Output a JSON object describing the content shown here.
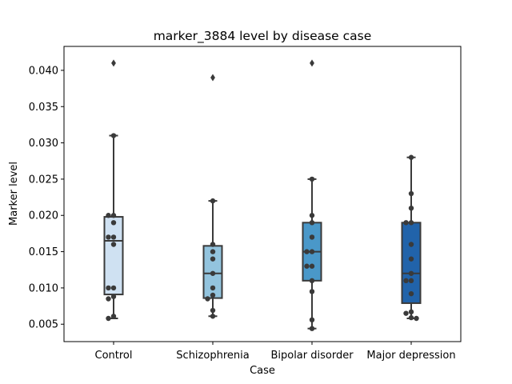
{
  "chart_data": {
    "type": "box",
    "title": "marker_3884 level by disease case",
    "xlabel": "Case",
    "ylabel": "Marker level",
    "ylim": [
      0.0026,
      0.0433
    ],
    "yticks": [
      "0.005",
      "0.010",
      "0.015",
      "0.020",
      "0.025",
      "0.030",
      "0.035",
      "0.040"
    ],
    "grid": false,
    "legend": "none",
    "categories": [
      "Control",
      "Schizophrenia",
      "Bipolar disorder",
      "Major depression"
    ],
    "colors": [
      "#cfe1f2",
      "#93c4de",
      "#4a98c9",
      "#2163aa"
    ],
    "boxes": [
      {
        "whisker_low": 0.0058,
        "q1": 0.0091,
        "median": 0.0165,
        "q3": 0.0198,
        "whisker_high": 0.031
      },
      {
        "whisker_low": 0.0061,
        "q1": 0.0086,
        "median": 0.012,
        "q3": 0.0158,
        "whisker_high": 0.022
      },
      {
        "whisker_low": 0.0044,
        "q1": 0.011,
        "median": 0.015,
        "q3": 0.019,
        "whisker_high": 0.025
      },
      {
        "whisker_low": 0.0058,
        "q1": 0.0079,
        "median": 0.012,
        "q3": 0.019,
        "whisker_high": 0.028
      }
    ],
    "outliers": [
      {
        "category": "Control",
        "value": 0.041
      },
      {
        "category": "Schizophrenia",
        "value": 0.039
      },
      {
        "category": "Bipolar disorder",
        "value": 0.041
      }
    ],
    "points": [
      {
        "category": "Control",
        "values": [
          0.031,
          0.02,
          0.02,
          0.019,
          0.017,
          0.017,
          0.016,
          0.01,
          0.01,
          0.0088,
          0.0085,
          0.0061,
          0.0058
        ]
      },
      {
        "category": "Schizophrenia",
        "values": [
          0.022,
          0.016,
          0.015,
          0.014,
          0.012,
          0.01,
          0.009,
          0.0085,
          0.0069,
          0.0061
        ]
      },
      {
        "category": "Bipolar disorder",
        "values": [
          0.025,
          0.02,
          0.019,
          0.017,
          0.015,
          0.015,
          0.013,
          0.013,
          0.011,
          0.0095,
          0.0056,
          0.0044
        ]
      },
      {
        "category": "Major depression",
        "values": [
          0.028,
          0.023,
          0.021,
          0.019,
          0.019,
          0.016,
          0.014,
          0.012,
          0.011,
          0.011,
          0.0092,
          0.0067,
          0.0065,
          0.0059,
          0.0058
        ]
      }
    ]
  }
}
